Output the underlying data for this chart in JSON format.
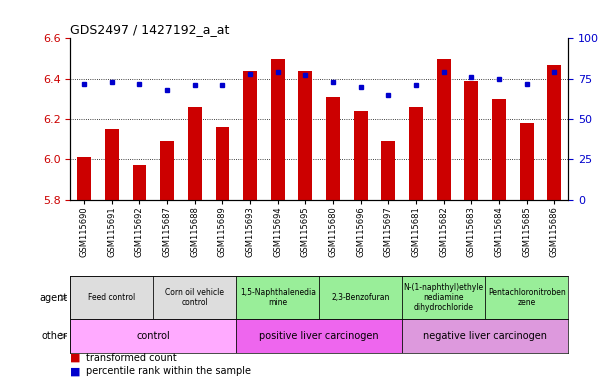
{
  "title": "GDS2497 / 1427192_a_at",
  "samples": [
    "GSM115690",
    "GSM115691",
    "GSM115692",
    "GSM115687",
    "GSM115688",
    "GSM115689",
    "GSM115693",
    "GSM115694",
    "GSM115695",
    "GSM115680",
    "GSM115696",
    "GSM115697",
    "GSM115681",
    "GSM115682",
    "GSM115683",
    "GSM115684",
    "GSM115685",
    "GSM115686"
  ],
  "bar_values": [
    6.01,
    6.15,
    5.97,
    6.09,
    6.26,
    6.16,
    6.44,
    6.5,
    6.44,
    6.31,
    6.24,
    6.09,
    6.26,
    6.5,
    6.39,
    6.3,
    6.18,
    6.47
  ],
  "dot_values": [
    72,
    73,
    72,
    68,
    71,
    71,
    78,
    79,
    77,
    73,
    70,
    65,
    71,
    79,
    76,
    75,
    72,
    79
  ],
  "ylim_left": [
    5.8,
    6.6
  ],
  "ylim_right": [
    0,
    100
  ],
  "yticks_left": [
    5.8,
    6.0,
    6.2,
    6.4,
    6.6
  ],
  "yticks_right": [
    0,
    25,
    50,
    75,
    100
  ],
  "bar_color": "#cc0000",
  "dot_color": "#0000cc",
  "agent_groups": [
    {
      "label": "Feed control",
      "start": 0,
      "end": 3,
      "color": "#dddddd"
    },
    {
      "label": "Corn oil vehicle\ncontrol",
      "start": 3,
      "end": 6,
      "color": "#dddddd"
    },
    {
      "label": "1,5-Naphthalenedia\nmine",
      "start": 6,
      "end": 9,
      "color": "#99ee99"
    },
    {
      "label": "2,3-Benzofuran",
      "start": 9,
      "end": 12,
      "color": "#99ee99"
    },
    {
      "label": "N-(1-naphthyl)ethyle\nnediamine\ndihydrochloride",
      "start": 12,
      "end": 15,
      "color": "#99ee99"
    },
    {
      "label": "Pentachloronitroben\nzene",
      "start": 15,
      "end": 18,
      "color": "#99ee99"
    }
  ],
  "other_groups": [
    {
      "label": "control",
      "start": 0,
      "end": 6,
      "color": "#ffaaff"
    },
    {
      "label": "positive liver carcinogen",
      "start": 6,
      "end": 12,
      "color": "#ee66ee"
    },
    {
      "label": "negative liver carcinogen",
      "start": 12,
      "end": 18,
      "color": "#dd99dd"
    }
  ],
  "bg_color": "#ffffff",
  "tick_label_color_left": "#cc0000",
  "tick_label_color_right": "#0000cc",
  "grid_yticks": [
    6.0,
    6.2,
    6.4
  ]
}
